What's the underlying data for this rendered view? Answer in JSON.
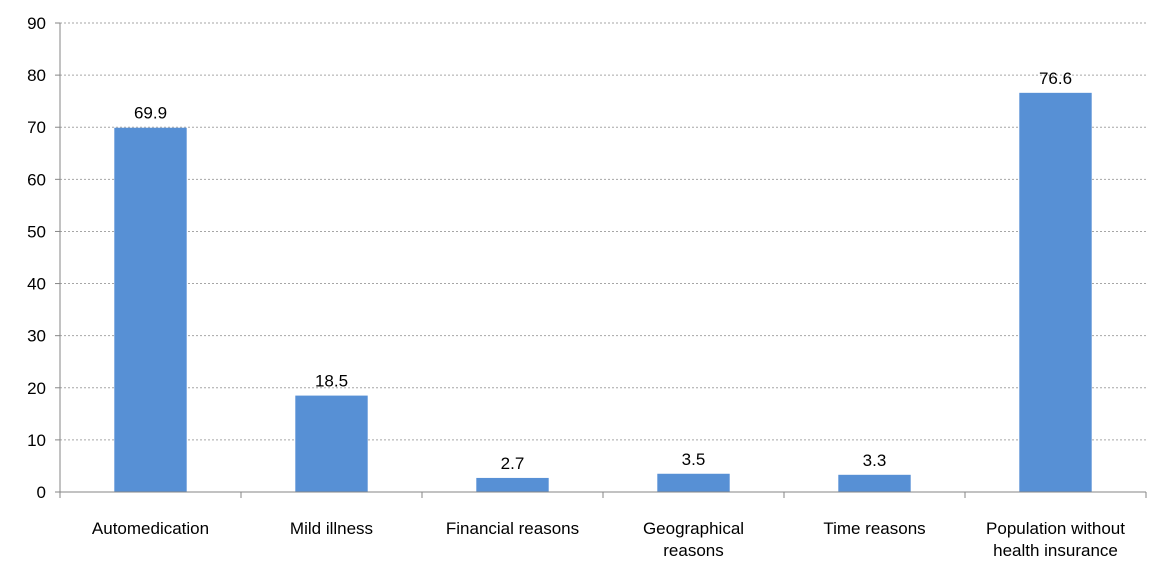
{
  "chart_data": {
    "type": "bar",
    "categories": [
      [
        "Automedication"
      ],
      [
        "Mild illness"
      ],
      [
        "Financial reasons"
      ],
      [
        "Geographical",
        "reasons"
      ],
      [
        "Time reasons"
      ],
      [
        "Population without",
        "health insurance"
      ]
    ],
    "values": [
      69.9,
      18.5,
      2.7,
      3.5,
      3.3,
      76.6
    ],
    "value_labels": [
      "69.9",
      "18.5",
      "2.7",
      "3.5",
      "3.3",
      "76.6"
    ],
    "y_ticks": [
      "0",
      "10",
      "20",
      "30",
      "40",
      "50",
      "60",
      "70",
      "80",
      "90"
    ],
    "ylim": [
      0,
      90
    ],
    "grid": true,
    "bar_color": "#5790d5",
    "grid_color": "#a6a6a6",
    "axis_color": "#868686"
  }
}
